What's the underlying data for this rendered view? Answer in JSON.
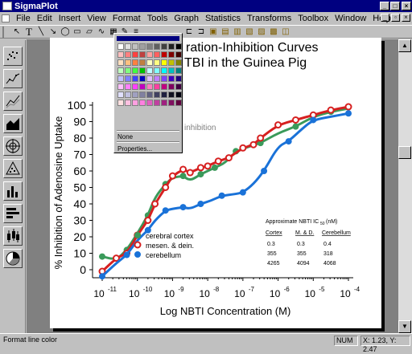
{
  "window": {
    "title": "SigmaPlot"
  },
  "menu": [
    "File",
    "Edit",
    "Insert",
    "View",
    "Format",
    "Tools",
    "Graph",
    "Statistics",
    "Transforms",
    "Toolbox",
    "Window",
    "Help"
  ],
  "toolbar": {
    "text_tool": "T"
  },
  "color_popup": {
    "none_label": "None",
    "properties_label": "Properties..."
  },
  "chart_data": {
    "type": "scatter",
    "title_line1": "ration-Inhibition Curves",
    "title_line2": "TBI in the Guinea Pig",
    "xlabel": "Log NBTI Concentration (M)",
    "ylabel": "% Inhibition of Adenosine Uptake",
    "xscale": "log",
    "xlim": [
      -11,
      -4
    ],
    "ylim": [
      0,
      100
    ],
    "yticks": [
      0,
      10,
      20,
      30,
      40,
      50,
      60,
      70,
      80,
      90,
      100
    ],
    "xticks": [
      "10",
      "10",
      "10",
      "10",
      "10",
      "10",
      "10",
      "10"
    ],
    "xtick_exps": [
      "-11",
      "-10",
      "-9",
      "-8",
      "-7",
      "-6",
      "-5",
      "-4"
    ],
    "equation": "inhibition",
    "legend": [
      {
        "name": "cerebral cortex",
        "color": "#3a9a5a"
      },
      {
        "name": "mesen. & dein.",
        "color": "#d62020"
      },
      {
        "name": "cerebellum",
        "color": "#1a72d8"
      }
    ],
    "series": [
      {
        "name": "cerebral cortex",
        "color": "#3a9a5a",
        "points": [
          [
            -11,
            8
          ],
          [
            -10.6,
            6
          ],
          [
            -10.3,
            12
          ],
          [
            -10,
            22
          ],
          [
            -9.7,
            33
          ],
          [
            -9.5,
            44
          ],
          [
            -9.2,
            52
          ],
          [
            -9,
            56
          ],
          [
            -8.7,
            57
          ],
          [
            -8.5,
            54
          ],
          [
            -8.2,
            58
          ],
          [
            -8,
            60
          ],
          [
            -7.8,
            62
          ],
          [
            -7.5,
            65
          ],
          [
            -7.2,
            72
          ],
          [
            -6.8,
            75
          ],
          [
            -6.5,
            77
          ],
          [
            -6,
            83
          ],
          [
            -5.5,
            87
          ],
          [
            -5,
            93
          ],
          [
            -4.5,
            96
          ],
          [
            -4,
            98
          ]
        ]
      },
      {
        "name": "mesen. & dein.",
        "color": "#d62020",
        "points": [
          [
            -11,
            -1
          ],
          [
            -10.6,
            7
          ],
          [
            -10.3,
            10
          ],
          [
            -10,
            21
          ],
          [
            -9.7,
            30
          ],
          [
            -9.5,
            40
          ],
          [
            -9.2,
            50
          ],
          [
            -9,
            57
          ],
          [
            -8.7,
            61
          ],
          [
            -8.5,
            59
          ],
          [
            -8.2,
            62
          ],
          [
            -8,
            63
          ],
          [
            -7.7,
            66
          ],
          [
            -7.4,
            68
          ],
          [
            -7,
            74
          ],
          [
            -6.7,
            76
          ],
          [
            -6.5,
            80
          ],
          [
            -6,
            88
          ],
          [
            -5.5,
            91
          ],
          [
            -5,
            94
          ],
          [
            -4.5,
            97
          ],
          [
            -4,
            99
          ]
        ]
      },
      {
        "name": "cerebellum",
        "color": "#1a72d8",
        "points": [
          [
            -11,
            -4
          ],
          [
            -10.6,
            4
          ],
          [
            -10.3,
            9
          ],
          [
            -10,
            18
          ],
          [
            -9.7,
            24
          ],
          [
            -9.5,
            30
          ],
          [
            -9.2,
            36
          ],
          [
            -9,
            37
          ],
          [
            -8.7,
            38
          ],
          [
            -8.5,
            37
          ],
          [
            -8.2,
            40
          ],
          [
            -7.9,
            42
          ],
          [
            -7.6,
            45
          ],
          [
            -7.2,
            46
          ],
          [
            -7,
            47
          ],
          [
            -6.7,
            52
          ],
          [
            -6.4,
            60
          ],
          [
            -6,
            75
          ],
          [
            -5.7,
            78
          ],
          [
            -5.3,
            86
          ],
          [
            -5,
            91
          ],
          [
            -4.5,
            93
          ],
          [
            -4,
            95
          ]
        ]
      }
    ],
    "table": {
      "title": "Approximate  NBTI IC",
      "sub": "50",
      "unit": " (nM)",
      "headers": [
        "Cortex",
        "M. & D.",
        "Cerebellum"
      ],
      "rows": [
        [
          "0.3",
          "0.3",
          "0.4"
        ],
        [
          "355",
          "355",
          "318"
        ],
        [
          "4265",
          "4094",
          "4068"
        ]
      ]
    }
  },
  "status": {
    "message": "Format line color",
    "num": "NUM",
    "coords": "X: 1.23, Y: 2.47"
  }
}
